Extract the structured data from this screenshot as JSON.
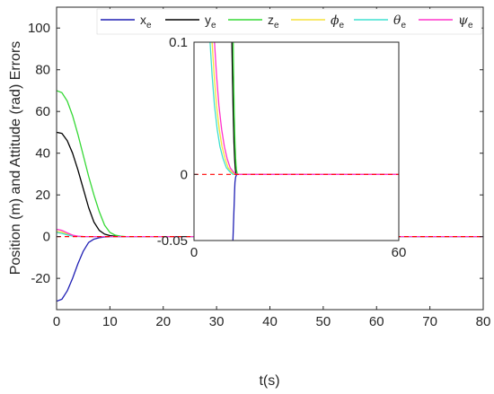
{
  "chart_data": [
    {
      "type": "line",
      "xlabel": "t(s)",
      "ylabel": "Position (m) and Attitude (rad) Errors",
      "xlim": [
        0,
        80
      ],
      "ylim": [
        -35,
        110
      ],
      "xticks": [
        "0",
        "10",
        "20",
        "30",
        "40",
        "50",
        "60",
        "70",
        "80"
      ],
      "yticks": [
        "-20",
        "0",
        "20",
        "40",
        "60",
        "80",
        "100"
      ],
      "grid": false,
      "legend_position": "top",
      "legend": [
        {
          "main": "x",
          "sub": "e",
          "color": "#1f1fb4"
        },
        {
          "main": "y",
          "sub": "e",
          "color": "#000000"
        },
        {
          "main": "z",
          "sub": "e",
          "color": "#35d835"
        },
        {
          "main": "ϕ",
          "sub": "e",
          "color": "#f5e23a"
        },
        {
          "main": "θ",
          "sub": "e",
          "color": "#3fe0d0"
        },
        {
          "main": "ψ",
          "sub": "e",
          "color": "#ff33cc"
        }
      ],
      "series": [
        {
          "name": "xe",
          "color": "#1f1fb4",
          "x": [
            0,
            1,
            2,
            3,
            4,
            5,
            6,
            7,
            8,
            9,
            10,
            11,
            12,
            13,
            80
          ],
          "y": [
            -31,
            -30,
            -26,
            -20,
            -13,
            -7,
            -2.8,
            -1.2,
            -0.5,
            -0.2,
            -0.08,
            -0.03,
            -0.01,
            0,
            0
          ]
        },
        {
          "name": "ye",
          "color": "#000000",
          "x": [
            0,
            1,
            2,
            3,
            4,
            5,
            6,
            7,
            8,
            9,
            10,
            11,
            12,
            13,
            80
          ],
          "y": [
            50,
            49.5,
            46,
            40,
            32,
            23,
            14,
            7,
            3,
            1.2,
            0.5,
            0.2,
            0.05,
            0,
            0
          ]
        },
        {
          "name": "ze",
          "color": "#35d835",
          "x": [
            0,
            1,
            2,
            3,
            4,
            5,
            6,
            7,
            8,
            9,
            10,
            11,
            12,
            13,
            80
          ],
          "y": [
            70,
            69,
            65,
            58,
            49,
            39,
            29,
            20,
            12,
            5.5,
            2,
            0.7,
            0.2,
            0,
            0
          ]
        },
        {
          "name": "phie",
          "color": "#f5e23a",
          "x": [
            0,
            1,
            2,
            3,
            4,
            5,
            6,
            80
          ],
          "y": [
            2.5,
            2.2,
            1.2,
            0.4,
            0.1,
            0.02,
            0,
            0
          ]
        },
        {
          "name": "thetae",
          "color": "#3fe0d0",
          "x": [
            0,
            1,
            2,
            3,
            4,
            5,
            6,
            80
          ],
          "y": [
            2.0,
            1.5,
            0.8,
            0.3,
            0.08,
            0.02,
            0,
            0
          ]
        },
        {
          "name": "psie",
          "color": "#ff33cc",
          "x": [
            0,
            1,
            2,
            3,
            4,
            5,
            6,
            80
          ],
          "y": [
            3.5,
            3.0,
            1.8,
            0.7,
            0.2,
            0.05,
            0,
            0
          ]
        }
      ],
      "reference_line": {
        "y": 0,
        "color": "#ff0000",
        "style": "dashed"
      }
    },
    {
      "type": "line",
      "inset": true,
      "xlim": [
        0,
        60
      ],
      "ylim": [
        -0.05,
        0.1
      ],
      "xticks": [
        "0",
        "60"
      ],
      "yticks": [
        "-0.05",
        "0",
        "0.1"
      ],
      "series": [
        {
          "name": "xe",
          "color": "#1f1fb4",
          "x": [
            11.4,
            11.6,
            11.8,
            11.9,
            12.0,
            12.2,
            12.5,
            60
          ],
          "y": [
            -0.05,
            -0.035,
            -0.02,
            -0.012,
            -0.006,
            -0.002,
            0,
            0
          ]
        },
        {
          "name": "ye",
          "color": "#000000",
          "x": [
            11.1,
            11.3,
            11.5,
            11.7,
            11.9,
            12.1,
            12.3,
            60
          ],
          "y": [
            0.1,
            0.07,
            0.045,
            0.025,
            0.012,
            0.004,
            0,
            0
          ]
        },
        {
          "name": "ze",
          "color": "#35d835",
          "x": [
            11.5,
            11.6,
            11.8,
            12.0,
            12.2,
            12.4,
            12.7,
            60
          ],
          "y": [
            0.1,
            0.075,
            0.045,
            0.025,
            0.012,
            0.004,
            0,
            0
          ]
        },
        {
          "name": "thetae",
          "color": "#3fe0d0",
          "x": [
            4.7,
            5.3,
            6.0,
            6.8,
            7.6,
            8.5,
            9.5,
            10.5,
            11.5,
            60
          ],
          "y": [
            0.1,
            0.075,
            0.052,
            0.034,
            0.021,
            0.012,
            0.005,
            0.002,
            0,
            0
          ]
        },
        {
          "name": "phie",
          "color": "#f5e23a",
          "x": [
            5.3,
            5.9,
            6.6,
            7.4,
            8.2,
            9.1,
            10.0,
            11.0,
            12.0,
            60
          ],
          "y": [
            0.1,
            0.075,
            0.052,
            0.034,
            0.021,
            0.012,
            0.005,
            0.002,
            0,
            0
          ]
        },
        {
          "name": "psie",
          "color": "#ff33cc",
          "x": [
            6.0,
            6.6,
            7.3,
            8.1,
            8.9,
            9.7,
            10.6,
            11.5,
            12.3,
            60
          ],
          "y": [
            0.1,
            0.075,
            0.052,
            0.034,
            0.021,
            0.012,
            0.005,
            0.002,
            0,
            0
          ]
        }
      ],
      "reference_line": {
        "y": 0,
        "color": "#ff0000",
        "style": "dashed"
      }
    }
  ]
}
